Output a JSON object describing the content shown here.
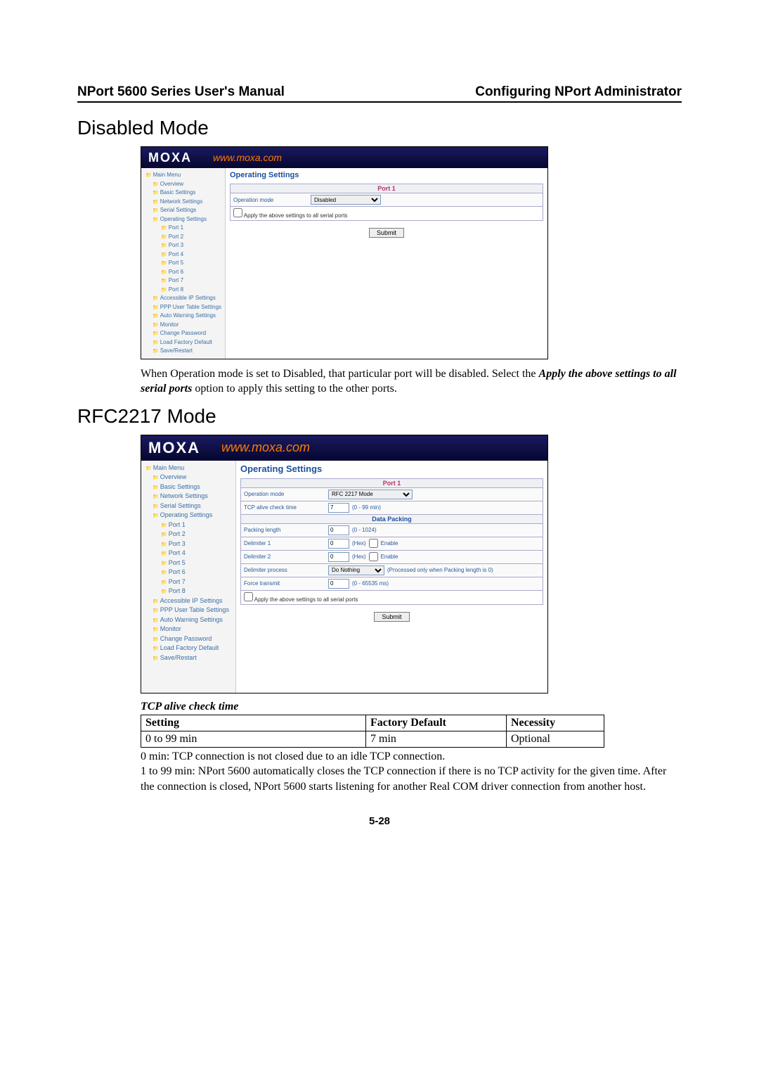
{
  "header": {
    "left": "NPort 5600 Series User's Manual",
    "right": "Configuring NPort Administrator"
  },
  "section1": {
    "title": "Disabled Mode",
    "screenshot": {
      "brand": "MOXA",
      "url": "www.moxa.com",
      "contentTitle": "Operating Settings",
      "tree": [
        {
          "label": "Main Menu",
          "indent": 0
        },
        {
          "label": "Overview",
          "indent": 1
        },
        {
          "label": "Basic Settings",
          "indent": 1
        },
        {
          "label": "Network Settings",
          "indent": 1
        },
        {
          "label": "Serial Settings",
          "indent": 1
        },
        {
          "label": "Operating Settings",
          "indent": 1
        },
        {
          "label": "Port 1",
          "indent": 2
        },
        {
          "label": "Port 2",
          "indent": 2
        },
        {
          "label": "Port 3",
          "indent": 2
        },
        {
          "label": "Port 4",
          "indent": 2
        },
        {
          "label": "Port 5",
          "indent": 2
        },
        {
          "label": "Port 6",
          "indent": 2
        },
        {
          "label": "Port 7",
          "indent": 2
        },
        {
          "label": "Port 8",
          "indent": 2
        },
        {
          "label": "Accessible IP Settings",
          "indent": 1
        },
        {
          "label": "PPP User Table Settings",
          "indent": 1
        },
        {
          "label": "Auto Warning Settings",
          "indent": 1
        },
        {
          "label": "Monitor",
          "indent": 1
        },
        {
          "label": "Change Password",
          "indent": 1
        },
        {
          "label": "Load Factory Default",
          "indent": 1
        },
        {
          "label": "Save/Restart",
          "indent": 1
        }
      ],
      "portHeader": "Port 1",
      "opModeLabel": "Operation mode",
      "opModeValue": "Disabled",
      "applyLabel": "Apply the above settings to all serial ports",
      "submit": "Submit"
    },
    "paragraph_part1": "When Operation mode is set to Disabled, that particular port will be disabled. Select the ",
    "paragraph_italic": "Apply the above settings to all serial ports",
    "paragraph_part2": " option to apply this setting to the other ports."
  },
  "section2": {
    "title": "RFC2217 Mode",
    "screenshot": {
      "brand": "MOXA",
      "url": "www.moxa.com",
      "contentTitle": "Operating Settings",
      "tree": [
        {
          "label": "Main Menu",
          "indent": 0
        },
        {
          "label": "Overview",
          "indent": 1
        },
        {
          "label": "Basic Settings",
          "indent": 1
        },
        {
          "label": "Network Settings",
          "indent": 1
        },
        {
          "label": "Serial Settings",
          "indent": 1
        },
        {
          "label": "Operating Settings",
          "indent": 1
        },
        {
          "label": "Port 1",
          "indent": 2
        },
        {
          "label": "Port 2",
          "indent": 2
        },
        {
          "label": "Port 3",
          "indent": 2
        },
        {
          "label": "Port 4",
          "indent": 2
        },
        {
          "label": "Port 5",
          "indent": 2
        },
        {
          "label": "Port 6",
          "indent": 2
        },
        {
          "label": "Port 7",
          "indent": 2
        },
        {
          "label": "Port 8",
          "indent": 2
        },
        {
          "label": "Accessible IP Settings",
          "indent": 1
        },
        {
          "label": "PPP User Table Settings",
          "indent": 1
        },
        {
          "label": "Auto Warning Settings",
          "indent": 1
        },
        {
          "label": "Monitor",
          "indent": 1
        },
        {
          "label": "Change Password",
          "indent": 1
        },
        {
          "label": "Load Factory Default",
          "indent": 1
        },
        {
          "label": "Save/Restart",
          "indent": 1
        }
      ],
      "portHeader": "Port 1",
      "rows": {
        "opModeLabel": "Operation mode",
        "opModeValue": "RFC 2217 Mode",
        "tcpLabel": "TCP alive check time",
        "tcpValue": "7",
        "tcpHint": "(0 - 99 min)",
        "dpHeader": "Data Packing",
        "packLenLabel": "Packing length",
        "packLenValue": "0",
        "packLenHint": "(0 - 1024)",
        "delim1Label": "Delimiter 1",
        "delim1Value": "0",
        "delim1Hint": "(Hex)",
        "enable": "Enable",
        "delim2Label": "Delimiter 2",
        "delim2Value": "0",
        "delim2Hint": "(Hex)",
        "delimProcLabel": "Delimiter process",
        "delimProcValue": "Do Nothing",
        "delimProcHint": "(Processed only when Packing length is 0)",
        "forceLabel": "Force transmit",
        "forceValue": "0",
        "forceHint": "(0 - 65535 ms)"
      },
      "applyLabel": "Apply the above settings to all serial ports",
      "submit": "Submit"
    }
  },
  "paramSection": {
    "heading": "TCP alive check time",
    "table": {
      "h1": "Setting",
      "h2": "Factory Default",
      "h3": "Necessity",
      "r1c1": "0 to 99 min",
      "r1c2": "7 min",
      "r1c3": "Optional"
    },
    "note1": "0 min: TCP connection is not closed due to an idle TCP connection.",
    "note2": "1 to 99 min: NPort 5600 automatically closes the TCP connection if there is no TCP activity for the given time. After the connection is closed, NPort 5600 starts listening for another Real COM driver connection from another host."
  },
  "pageNum": "5-28"
}
